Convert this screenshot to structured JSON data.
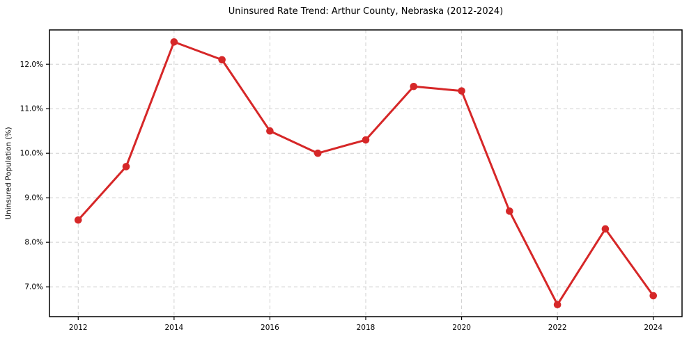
{
  "chart_data": {
    "type": "line",
    "title": "Uninsured Rate Trend: Arthur County, Nebraska (2012-2024)",
    "xlabel": "",
    "ylabel": "Uninsured Population (%)",
    "x": [
      2012,
      2013,
      2014,
      2015,
      2016,
      2017,
      2018,
      2019,
      2020,
      2021,
      2022,
      2023,
      2024
    ],
    "series": [
      {
        "name": "uninsured-rate",
        "values": [
          8.5,
          9.7,
          12.5,
          12.1,
          10.5,
          10.0,
          10.3,
          11.5,
          11.4,
          8.7,
          6.6,
          8.3,
          6.8
        ],
        "color": "#d62728"
      }
    ],
    "xlim": [
      2011.4,
      2024.6
    ],
    "ylim": [
      6.33,
      12.77
    ],
    "x_ticks": [
      2012,
      2014,
      2016,
      2018,
      2020,
      2022,
      2024
    ],
    "x_tick_labels": [
      "2012",
      "2014",
      "2016",
      "2018",
      "2020",
      "2022",
      "2024"
    ],
    "y_ticks": [
      7,
      8,
      9,
      10,
      11,
      12
    ],
    "y_tick_labels": [
      "7.0%",
      "8.0%",
      "9.0%",
      "10.0%",
      "11.0%",
      "12.0%"
    ],
    "grid": true,
    "grid_color": "#cfcfcf",
    "spine_color": "#000000",
    "legend": false,
    "marker": "circle"
  }
}
